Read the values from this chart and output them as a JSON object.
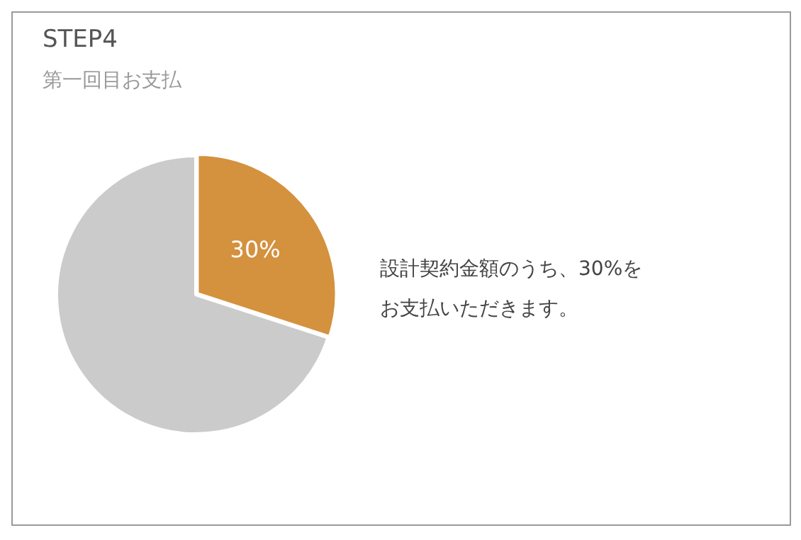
{
  "chart_data": {
    "type": "pie",
    "title": "STEP4",
    "subtitle": "第一回目お支払",
    "categories": [
      null,
      null
    ],
    "values": [
      30,
      70
    ],
    "colors": [
      "#d4913e",
      "#cbcbcb"
    ],
    "value_labels": [
      "30%",
      null
    ],
    "legend": false,
    "annotations": [
      "設計契約金額のうち、30%をお支払いただきます。"
    ]
  }
}
